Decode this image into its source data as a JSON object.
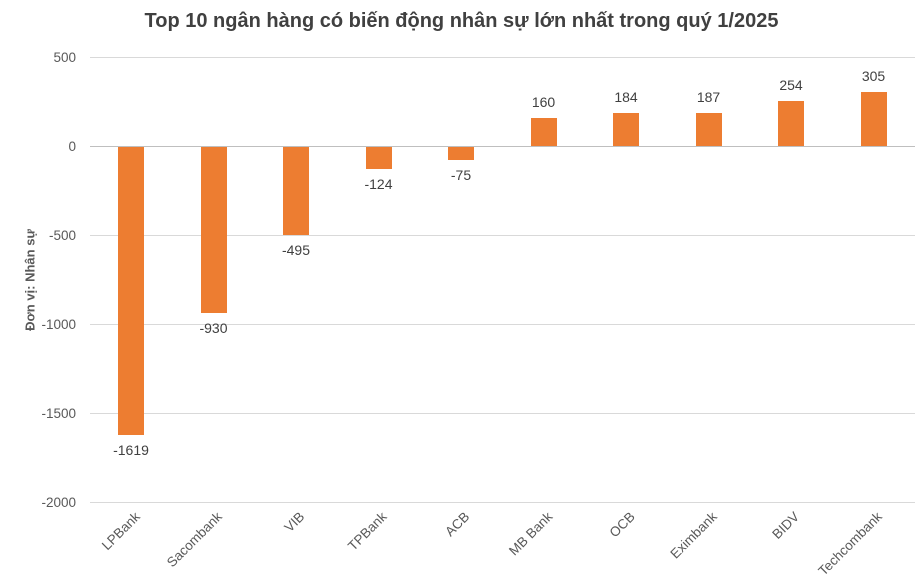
{
  "chart_data": {
    "type": "bar",
    "title": "Top 10 ngân hàng có biến động nhân sự lớn nhất trong quý 1/2025",
    "categories": [
      "LPBank",
      "Sacombank",
      "VIB",
      "TPBank",
      "ACB",
      "MB Bank",
      "OCB",
      "Eximbank",
      "BIDV",
      "Techcombank"
    ],
    "values": [
      -1619,
      -930,
      -495,
      -124,
      -75,
      160,
      184,
      187,
      254,
      305
    ],
    "data_labels": [
      "-1619",
      "-930",
      "-495",
      "-124",
      "-75",
      "160",
      "184",
      "187",
      "254",
      "305"
    ],
    "xlabel": "",
    "ylabel": "Đơn vị: Nhân sự",
    "ylim": [
      -2000,
      500
    ],
    "yticks": [
      500,
      0,
      -500,
      -1000,
      -1500,
      -2000
    ],
    "grid": true,
    "legend": false,
    "bar_color": "#ED7D31",
    "gridline_color": "#D9D9D9",
    "axis_line_color": "#BFBFBF",
    "axis_text_color": "#595959",
    "title_color": "#404040",
    "data_label_color": "#404040"
  }
}
